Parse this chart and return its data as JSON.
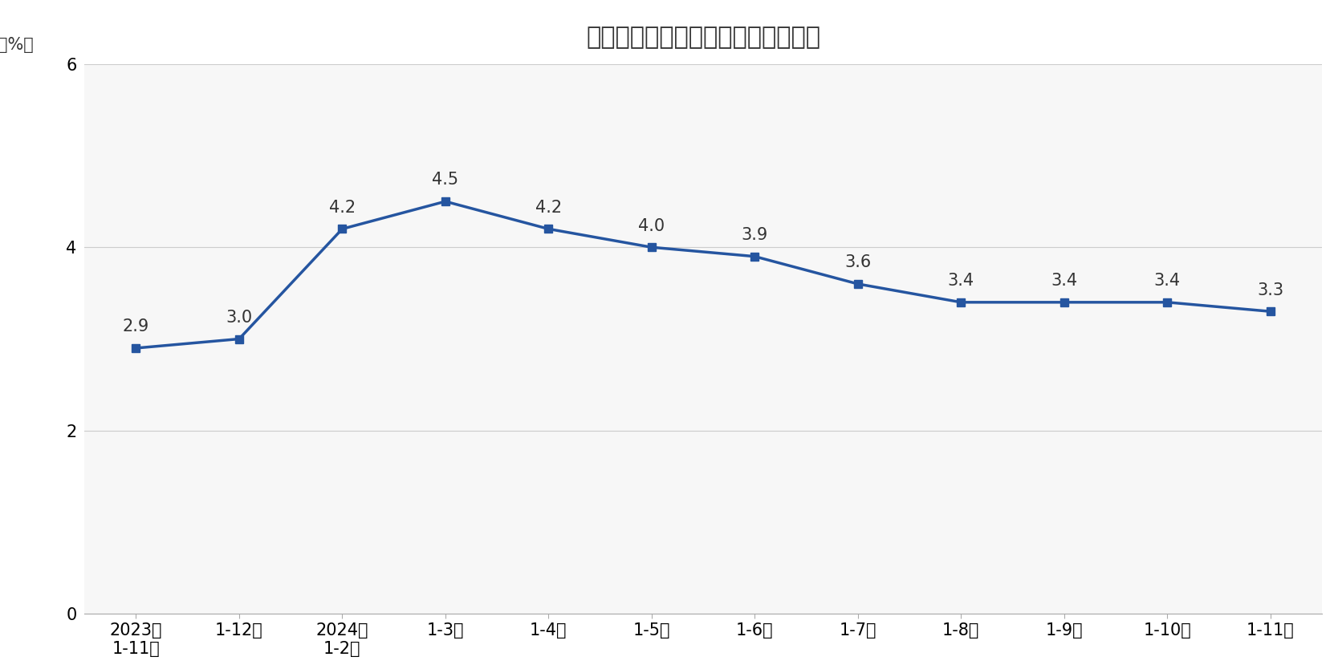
{
  "title": "固定资产投资（不含农户）同比增速",
  "ylabel": "（%）",
  "x_labels": [
    "2023年\n1-11月",
    "1-12月",
    "2024年\n1-2月",
    "1-3月",
    "1-4月",
    "1-5月",
    "1-6月",
    "1-7月",
    "1-8月",
    "1-9月",
    "1-10月",
    "1-11月"
  ],
  "values": [
    2.9,
    3.0,
    4.2,
    4.5,
    4.2,
    4.0,
    3.9,
    3.6,
    3.4,
    3.4,
    3.4,
    3.3
  ],
  "line_color": "#2555A0",
  "marker_style": "s",
  "marker_size": 7,
  "ylim": [
    0,
    6
  ],
  "yticks": [
    0,
    2,
    4,
    6
  ],
  "title_fontsize": 22,
  "label_fontsize": 15,
  "tick_fontsize": 15,
  "annotation_fontsize": 15,
  "background_color": "#ffffff",
  "plot_bg_color": "#f7f7f7"
}
